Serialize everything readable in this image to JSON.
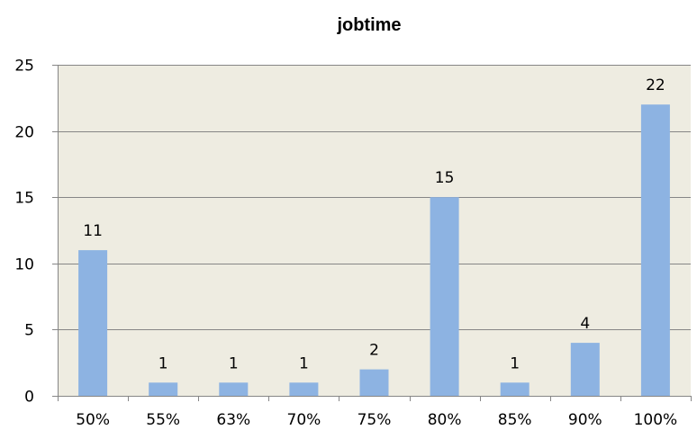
{
  "chart_data": {
    "type": "bar",
    "title": "jobtime",
    "xlabel": "",
    "ylabel": "",
    "categories": [
      "50%",
      "55%",
      "63%",
      "70%",
      "75%",
      "80%",
      "85%",
      "90%",
      "100%"
    ],
    "values": [
      11,
      1,
      1,
      1,
      2,
      15,
      1,
      4,
      22
    ],
    "ylim": [
      0,
      25
    ],
    "yticks": [
      0,
      5,
      10,
      15,
      20,
      25
    ],
    "grid": true,
    "legend": "none",
    "data_labels": true,
    "colors": {
      "bar": "#8db3e2",
      "plot_background": "#eeece1",
      "gridline": "#868686",
      "axis": "#868686"
    }
  }
}
